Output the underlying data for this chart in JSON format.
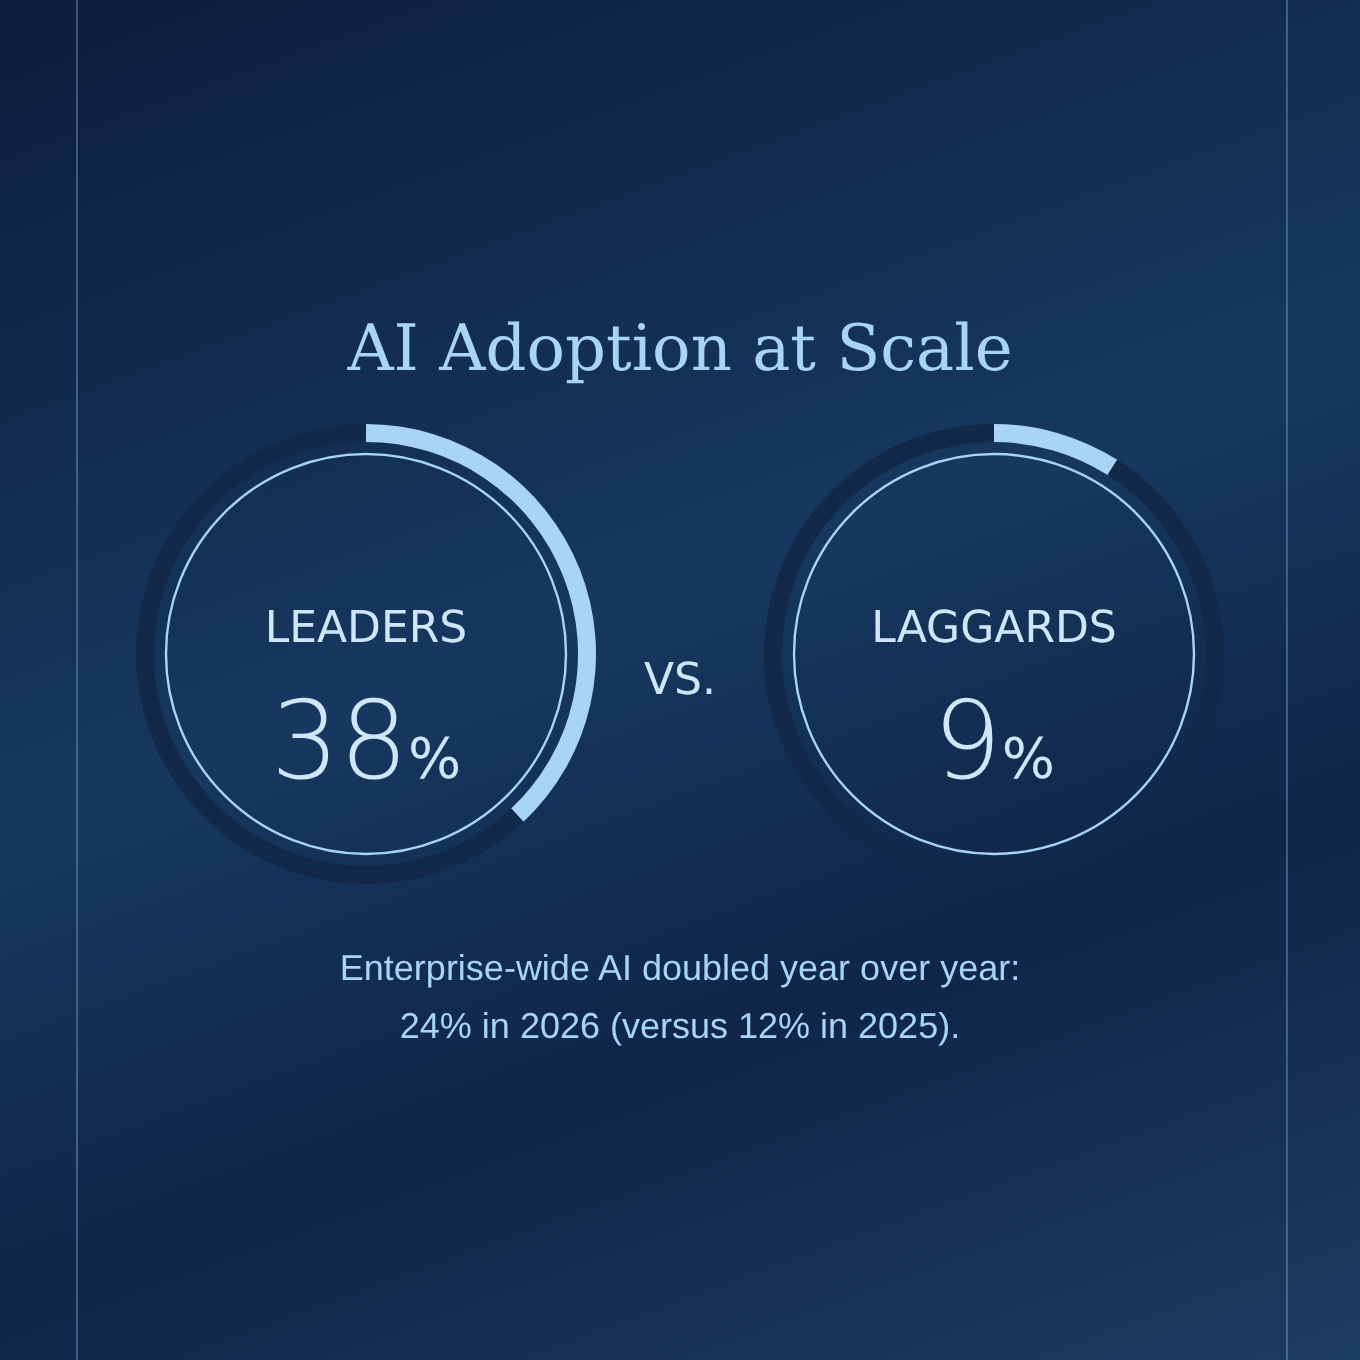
{
  "chart_data": [
    {
      "type": "donut",
      "title": "AI Adoption at Scale",
      "categories": [
        "LEADERS",
        null
      ],
      "values": [
        38,
        62
      ],
      "colors": [
        "#a8d4f7",
        "#12294a"
      ],
      "value_labels": [
        "38%",
        null
      ],
      "annotations": [
        "VS."
      ]
    },
    {
      "type": "donut",
      "categories": [
        "LAGGARDS",
        null
      ],
      "values": [
        9,
        91
      ],
      "colors": [
        "#a8d4f7",
        "#12294a"
      ],
      "value_labels": [
        "9%",
        null
      ],
      "annotations": [
        "Enterprise-wide AI doubled year over year:\n24% in 2026 (versus 12% in 2025)."
      ]
    }
  ]
}
